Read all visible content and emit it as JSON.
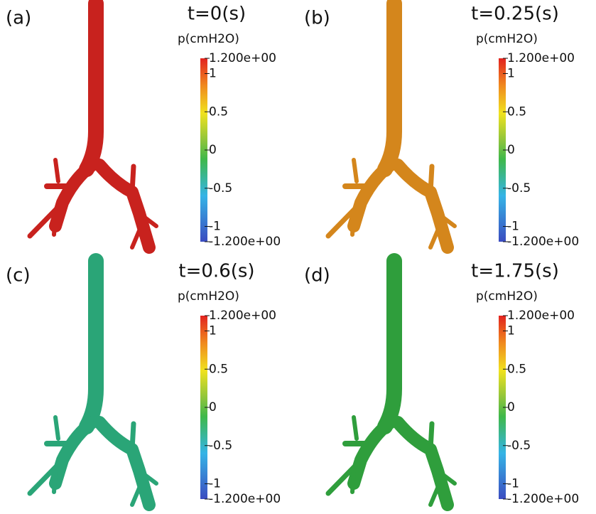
{
  "panels": [
    {
      "label": "(a)",
      "time": "t=0(s)",
      "color": "#c8221e"
    },
    {
      "label": "(b)",
      "time": "t=0.25(s)",
      "color": "#d4861c"
    },
    {
      "label": "(c)",
      "time": "t=0.6(s)",
      "color": "#2aa577"
    },
    {
      "label": "(d)",
      "time": "t=1.75(s)",
      "color": "#2f9e3c"
    }
  ],
  "colorbar": {
    "title": "p(cmH2O)",
    "ticks": [
      {
        "value": 1.2,
        "label": "1.200e+00"
      },
      {
        "value": 1,
        "label": "1"
      },
      {
        "value": 0.5,
        "label": "0.5"
      },
      {
        "value": 0,
        "label": "0"
      },
      {
        "value": -0.5,
        "label": "-0.5"
      },
      {
        "value": -1,
        "label": "-1"
      },
      {
        "value": -1.2,
        "label": "-1.200e+00"
      }
    ]
  }
}
